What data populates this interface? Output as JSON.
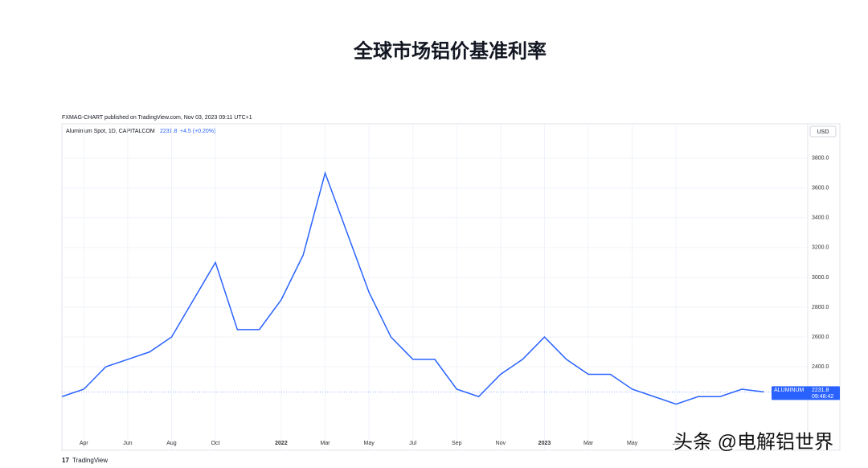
{
  "chart_data": {
    "type": "line",
    "title": "全球市场铝价基准利率",
    "source": "FXMAG-CHART published on TradingView.com, Nov 03, 2023 09:11 UTC+1",
    "symbol": "Aluminium Spot, 1D, CAPITALCOM",
    "last_value": 2231.8,
    "change": "+4.5 (+0.20%)",
    "currency": "USD",
    "badge_name": "ALUMINUM",
    "badge_time": "09:48:42",
    "brand": "TradingView",
    "watermark": "头条 @电解铝世界",
    "x": [
      "2021-03",
      "2021-04",
      "2021-05",
      "2021-06",
      "2021-07",
      "2021-08",
      "2021-09",
      "2021-10",
      "2021-11",
      "2021-12",
      "2022-01",
      "2022-02",
      "2022-03",
      "2022-04",
      "2022-05",
      "2022-06",
      "2022-07",
      "2022-08",
      "2022-09",
      "2022-10",
      "2022-11",
      "2022-12",
      "2023-01",
      "2023-02",
      "2023-03",
      "2023-04",
      "2023-05",
      "2023-06",
      "2023-07",
      "2023-08",
      "2023-09",
      "2023-10",
      "2023-11"
    ],
    "series": [
      {
        "name": "Aluminium Spot",
        "color": "#2962ff",
        "values": [
          2200,
          2250,
          2400,
          2450,
          2500,
          2600,
          2850,
          3100,
          2650,
          2650,
          2850,
          3150,
          3700,
          3300,
          2900,
          2600,
          2450,
          2450,
          2250,
          2200,
          2350,
          2450,
          2600,
          2450,
          2350,
          2350,
          2250,
          2200,
          2150,
          2200,
          2200,
          2250,
          2232
        ]
      }
    ],
    "xlim": [
      "2021-03",
      "2024-01"
    ],
    "xticks": [
      {
        "value": "2021-04",
        "label": "Apr"
      },
      {
        "value": "2021-06",
        "label": "Jun"
      },
      {
        "value": "2021-08",
        "label": "Aug"
      },
      {
        "value": "2021-10",
        "label": "Oct"
      },
      {
        "value": "2022-01",
        "label": "2022"
      },
      {
        "value": "2022-03",
        "label": "Mar"
      },
      {
        "value": "2022-05",
        "label": "May"
      },
      {
        "value": "2022-07",
        "label": "Jul"
      },
      {
        "value": "2022-09",
        "label": "Sep"
      },
      {
        "value": "2022-11",
        "label": "Nov"
      },
      {
        "value": "2023-01",
        "label": "2023"
      },
      {
        "value": "2023-03",
        "label": "Mar"
      },
      {
        "value": "2023-05",
        "label": "May"
      },
      {
        "value": "2023-07",
        "label": "Jul"
      }
    ],
    "ylim": [
      1840,
      4030
    ],
    "yticks": [
      {
        "value": 2400,
        "label": "2400.0"
      },
      {
        "value": 2600,
        "label": "2600.0"
      },
      {
        "value": 2800,
        "label": "2800.0"
      },
      {
        "value": 3000,
        "label": "3000.0"
      },
      {
        "value": 3200,
        "label": "3200.0"
      },
      {
        "value": 3400,
        "label": "3400.0"
      },
      {
        "value": 3600,
        "label": "3600.0"
      },
      {
        "value": 3800,
        "label": "3800.0"
      }
    ],
    "grid": true
  }
}
